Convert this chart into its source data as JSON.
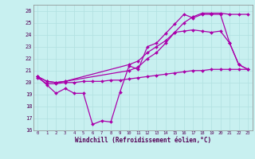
{
  "xlabel": "Windchill (Refroidissement éolien,°C)",
  "background_color": "#c8f0f0",
  "grid_color": "#b0e0e0",
  "line_color": "#aa00aa",
  "ylim": [
    16,
    26.5
  ],
  "xlim": [
    -0.5,
    23.5
  ],
  "yticks": [
    16,
    17,
    18,
    19,
    20,
    21,
    22,
    23,
    24,
    25,
    26
  ],
  "xticks": [
    0,
    1,
    2,
    3,
    4,
    5,
    6,
    7,
    8,
    9,
    10,
    11,
    12,
    13,
    14,
    15,
    16,
    17,
    18,
    19,
    20,
    21,
    22,
    23
  ],
  "line1_x": [
    0,
    1,
    2,
    3,
    4,
    5,
    6,
    7,
    8,
    9,
    10,
    11,
    12,
    13,
    14,
    15,
    16,
    17,
    18,
    19,
    20,
    21,
    22,
    23
  ],
  "line1_y": [
    20.5,
    19.8,
    19.1,
    19.5,
    19.1,
    19.1,
    16.5,
    16.8,
    16.7,
    19.2,
    21.4,
    21.1,
    23.0,
    23.3,
    24.1,
    24.9,
    25.7,
    25.4,
    25.7,
    25.7,
    25.7,
    23.3,
    21.5,
    21.1
  ],
  "line2_x": [
    0,
    1,
    2,
    3,
    4,
    5,
    6,
    7,
    8,
    9,
    10,
    11,
    12,
    13,
    14,
    15,
    16,
    17,
    18,
    19,
    20,
    21,
    22,
    23
  ],
  "line2_y": [
    20.4,
    19.9,
    19.9,
    20.0,
    20.0,
    20.1,
    20.1,
    20.1,
    20.2,
    20.2,
    20.3,
    20.4,
    20.5,
    20.6,
    20.7,
    20.8,
    20.9,
    21.0,
    21.0,
    21.1,
    21.1,
    21.1,
    21.1,
    21.1
  ],
  "line3_x": [
    0,
    1,
    2,
    3,
    10,
    11,
    12,
    13,
    14,
    15,
    16,
    17,
    18,
    19,
    20,
    21,
    22,
    23
  ],
  "line3_y": [
    20.5,
    20.1,
    20.0,
    20.1,
    21.5,
    21.8,
    22.5,
    23.0,
    23.5,
    24.2,
    25.0,
    25.5,
    25.8,
    25.8,
    25.8,
    25.7,
    25.7,
    25.7
  ],
  "line4_x": [
    0,
    1,
    2,
    3,
    10,
    11,
    12,
    13,
    14,
    15,
    16,
    17,
    18,
    19,
    20,
    21,
    22,
    23
  ],
  "line4_y": [
    20.5,
    20.1,
    20.0,
    20.1,
    21.0,
    21.3,
    22.0,
    22.5,
    23.3,
    24.2,
    24.3,
    24.4,
    24.3,
    24.2,
    24.3,
    23.3,
    21.5,
    21.1
  ]
}
